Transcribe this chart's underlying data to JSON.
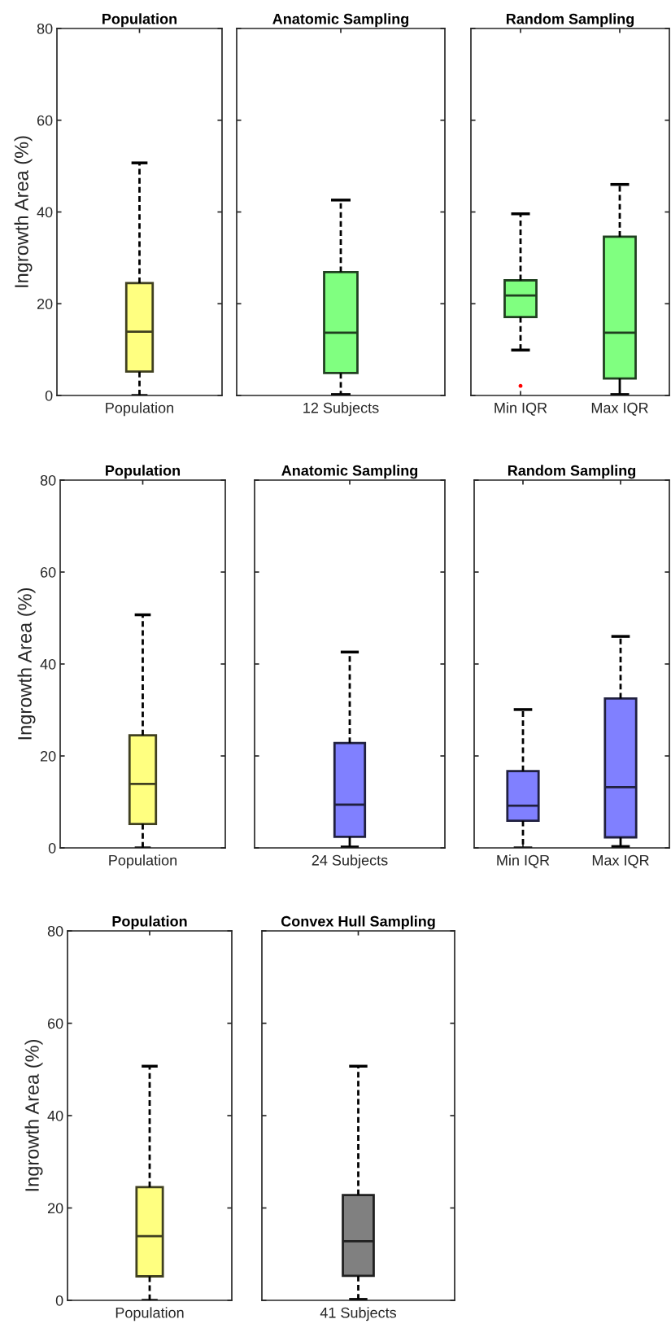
{
  "chart_data": [
    {
      "type": "box",
      "title": "Population",
      "ylabel": "Ingrowth Area (%)",
      "categories": [
        "Population"
      ],
      "ylim": [
        0,
        80
      ],
      "yticks": [
        0,
        20,
        40,
        60,
        80
      ],
      "series": [
        {
          "color": "#ffff80",
          "boxes": [
            {
              "low": 0,
              "q1": 5.2,
              "median": 13.9,
              "q3": 24.5,
              "high": 50.7
            }
          ]
        }
      ]
    },
    {
      "type": "box",
      "title": "Anatomic Sampling",
      "categories": [
        "12 Subjects"
      ],
      "ylim": [
        0,
        80
      ],
      "yticks": [
        0,
        20,
        40,
        60,
        80
      ],
      "tick_labels": "x",
      "series": [
        {
          "color": "#80ff80",
          "boxes": [
            {
              "low": 0.2,
              "q1": 4.9,
              "median": 13.7,
              "q3": 26.9,
              "high": 42.6
            }
          ]
        }
      ]
    },
    {
      "type": "box",
      "title": "Random Sampling",
      "categories": [
        "Min IQR",
        "Max IQR"
      ],
      "ylim": [
        0,
        80
      ],
      "yticks": [
        0,
        20,
        40,
        60,
        80
      ],
      "tick_labels": "x",
      "series": [
        {
          "color": "#80ff80",
          "boxes": [
            {
              "low": 9.9,
              "q1": 17.1,
              "median": 21.8,
              "q3": 25.1,
              "high": 39.6,
              "outliers": [
                2.1
              ]
            },
            {
              "low": 0.2,
              "q1": 3.7,
              "median": 13.7,
              "q3": 34.6,
              "high": 46.0
            }
          ]
        }
      ]
    },
    {
      "type": "box",
      "title": "Population",
      "ylabel": "Ingrowth Area (%)",
      "categories": [
        "Population"
      ],
      "ylim": [
        0,
        80
      ],
      "yticks": [
        0,
        20,
        40,
        60,
        80
      ],
      "series": [
        {
          "color": "#ffff80",
          "boxes": [
            {
              "low": 0,
              "q1": 5.2,
              "median": 13.9,
              "q3": 24.5,
              "high": 50.7
            }
          ]
        }
      ]
    },
    {
      "type": "box",
      "title": "Anatomic Sampling",
      "categories": [
        "24 Subjects"
      ],
      "ylim": [
        0,
        80
      ],
      "yticks": [
        0,
        20,
        40,
        60,
        80
      ],
      "tick_labels": "x",
      "series": [
        {
          "color": "#8080ff",
          "boxes": [
            {
              "low": 0.2,
              "q1": 2.4,
              "median": 9.4,
              "q3": 22.8,
              "high": 42.6
            }
          ]
        }
      ]
    },
    {
      "type": "box",
      "title": "Random Sampling",
      "categories": [
        "Min IQR",
        "Max IQR"
      ],
      "ylim": [
        0,
        80
      ],
      "yticks": [
        0,
        20,
        40,
        60,
        80
      ],
      "tick_labels": "x",
      "series": [
        {
          "color": "#8080ff",
          "boxes": [
            {
              "low": 0,
              "q1": 5.9,
              "median": 9.2,
              "q3": 16.7,
              "high": 30.1
            },
            {
              "low": 0.3,
              "q1": 2.3,
              "median": 13.2,
              "q3": 32.5,
              "high": 46.0
            }
          ]
        }
      ]
    },
    {
      "type": "box",
      "title": "Population",
      "ylabel": "Ingrowth Area (%)",
      "categories": [
        "Population"
      ],
      "ylim": [
        0,
        80
      ],
      "yticks": [
        0,
        20,
        40,
        60,
        80
      ],
      "series": [
        {
          "color": "#ffff80",
          "boxes": [
            {
              "low": 0,
              "q1": 5.2,
              "median": 13.9,
              "q3": 24.5,
              "high": 50.7
            }
          ]
        }
      ]
    },
    {
      "type": "box",
      "title": "Convex Hull Sampling",
      "categories": [
        "41 Subjects"
      ],
      "ylim": [
        0,
        80
      ],
      "yticks": [
        0,
        20,
        40,
        60,
        80
      ],
      "tick_labels": "x",
      "series": [
        {
          "color": "#808080",
          "boxes": [
            {
              "low": 0.2,
              "q1": 5.3,
              "median": 12.8,
              "q3": 22.8,
              "high": 50.7
            }
          ]
        }
      ]
    }
  ]
}
